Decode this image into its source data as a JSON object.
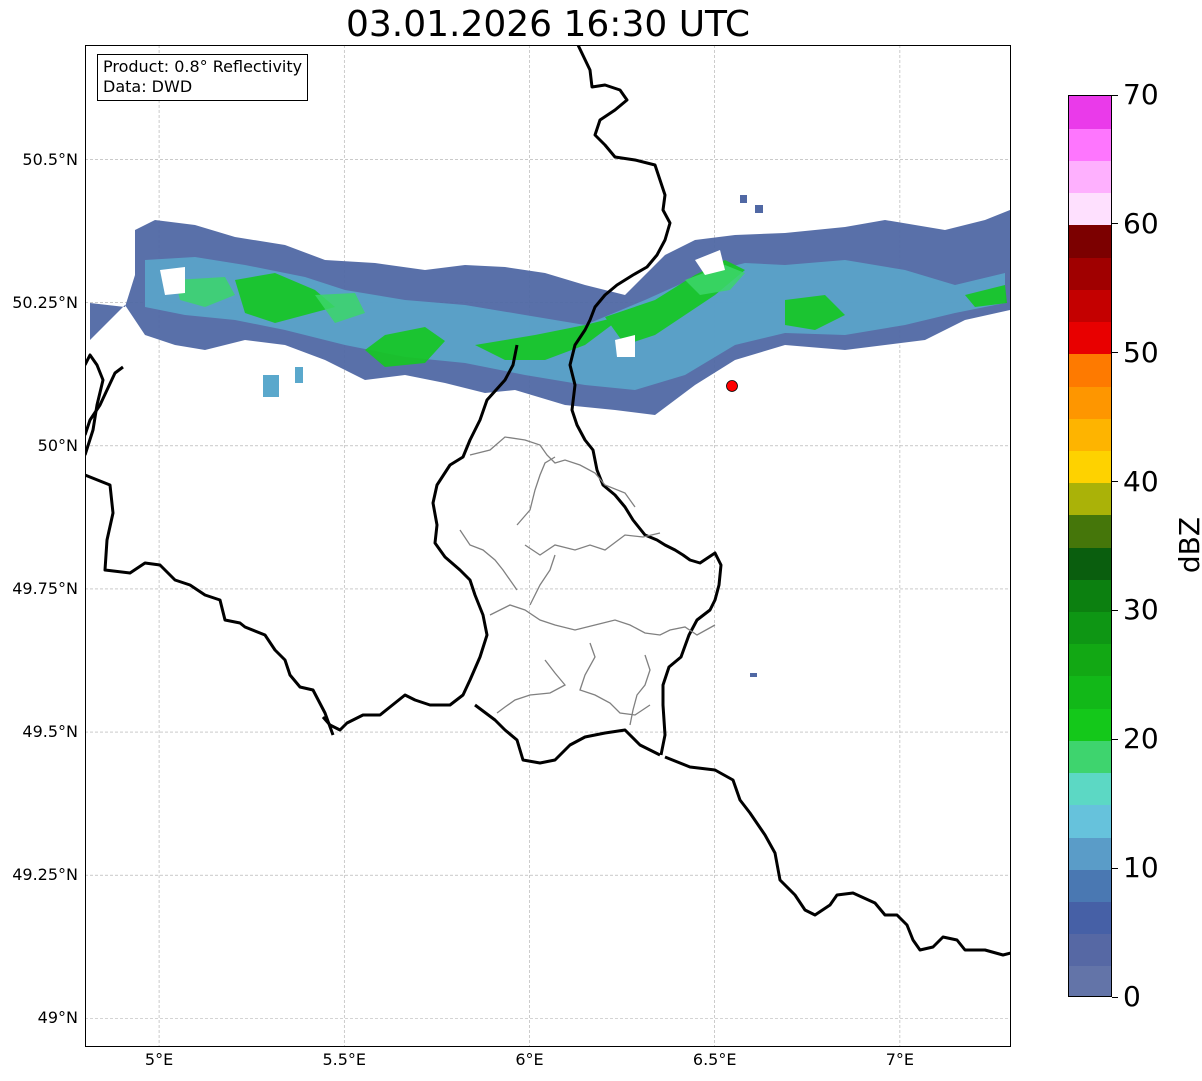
{
  "title": "03.01.2026 16:30 UTC",
  "info": {
    "product": "Product: 0.8° Reflectivity",
    "data_source": "Data: DWD"
  },
  "map": {
    "extent": {
      "lon": [
        4.8,
        7.3
      ],
      "lat": [
        48.95,
        50.7
      ]
    },
    "lat_ticks": [
      {
        "value": 50.5,
        "label": "50.5°N"
      },
      {
        "value": 50.25,
        "label": "50.25°N"
      },
      {
        "value": 50.0,
        "label": "50°N"
      },
      {
        "value": 49.75,
        "label": "49.75°N"
      },
      {
        "value": 49.5,
        "label": "49.5°N"
      },
      {
        "value": 49.25,
        "label": "49.25°N"
      },
      {
        "value": 49.0,
        "label": "49°N"
      }
    ],
    "lon_ticks": [
      {
        "value": 5.0,
        "label": "5°E"
      },
      {
        "value": 5.5,
        "label": "5.5°E"
      },
      {
        "value": 6.0,
        "label": "6°E"
      },
      {
        "value": 6.5,
        "label": "6.5°E"
      },
      {
        "value": 7.0,
        "label": "7°E"
      }
    ],
    "marker": {
      "lon": 6.55,
      "lat": 50.11,
      "color": "#ff0000"
    },
    "precip_band_colors": [
      "#5062a0",
      "#4a7ab0",
      "#5aa0c8",
      "#62c8d8",
      "#3cd66a",
      "#14c820",
      "#10b014"
    ]
  },
  "colorbar": {
    "label": "dBZ",
    "min": 0,
    "max": 70,
    "ticks": [
      "0",
      "10",
      "20",
      "30",
      "40",
      "50",
      "60",
      "70"
    ],
    "colors": [
      "#6374a8",
      "#5668a4",
      "#4660a6",
      "#4a78b2",
      "#5a9cc8",
      "#66c2dc",
      "#5cd8c4",
      "#3ed46e",
      "#14c81a",
      "#12b818",
      "#12a814",
      "#0e9614",
      "#0c8010",
      "#0a5e0e",
      "#45760a",
      "#aab208",
      "#fed200",
      "#feb400",
      "#fe9600",
      "#fe7a00",
      "#e80000",
      "#c40000",
      "#a00000",
      "#7c0000",
      "#fee0fe",
      "#feb0fe",
      "#fe76fe",
      "#ea3aea"
    ]
  }
}
